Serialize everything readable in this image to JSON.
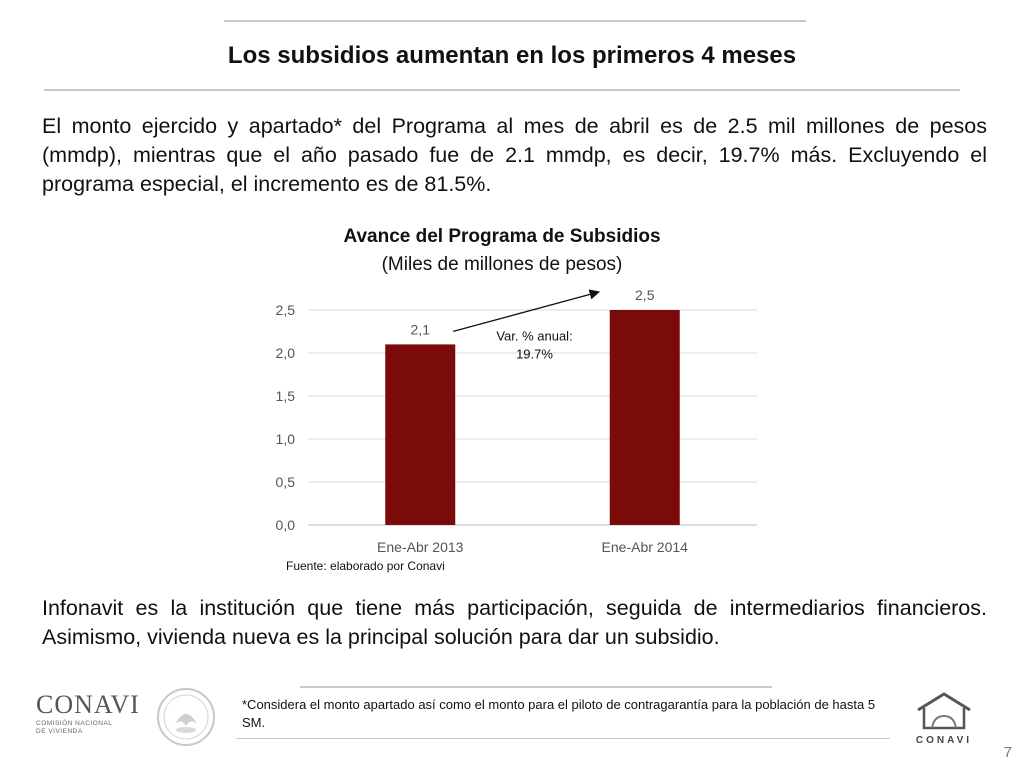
{
  "slide": {
    "title": "Los subsidios aumentan en los primeros 4 meses",
    "intro_text": "El monto ejercido y apartado* del Programa al mes de abril es de 2.5 mil millones de pesos (mmdp), mientras que el año pasado fue de 2.1 mmdp, es decir, 19.7% más. Excluyendo el programa especial, el incremento es de 81.5%.",
    "closing_text": "Infonavit es la institución que tiene más participación, seguida de intermediarios financieros. Asimismo, vivienda nueva es la principal solución para dar un subsidio.",
    "footnote": "*Considera el monto apartado así como el monto para el piloto de contragarantía para la población de hasta 5 SM.",
    "page_number": "7",
    "logo_left": {
      "name": "CONAVI",
      "subtitle_1": "COMISIÓN NACIONAL",
      "subtitle_2": "DE VIVIENDA"
    },
    "logo_right": {
      "caption": "CONAVI"
    }
  },
  "chart_data": {
    "type": "bar",
    "title": "Avance del Programa de Subsidios",
    "subtitle": "(Miles de millones de pesos)",
    "categories": [
      "Ene-Abr 2013",
      "Ene-Abr 2014"
    ],
    "values": [
      2.1,
      2.5
    ],
    "value_labels": [
      "2,1",
      "2,5"
    ],
    "ylim": [
      0,
      2.5
    ],
    "y_ticks": [
      "0,0",
      "0,5",
      "1,0",
      "1,5",
      "2,0",
      "2,5"
    ],
    "y_tick_values": [
      0,
      0.5,
      1.0,
      1.5,
      2.0,
      2.5
    ],
    "grid": true,
    "bar_color": "#7b0a0a",
    "annotation": {
      "line1": "Var. % anual:",
      "line2": "19.7%"
    },
    "source": "Fuente: elaborado por Conavi"
  }
}
